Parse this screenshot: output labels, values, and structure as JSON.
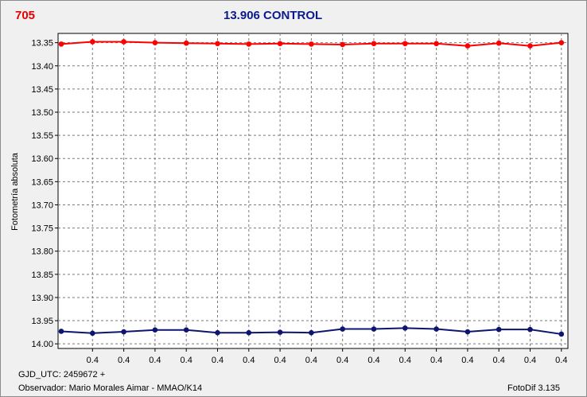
{
  "header": {
    "id_label": "705",
    "title": "13.906 CONTROL"
  },
  "footer": {
    "gjd": "GJD_UTC: 2459672 +",
    "observer": "Observador: Mario Morales Aimar - MMAO/K14",
    "software": "FotoDif 3.135"
  },
  "colors": {
    "red_series": "#ff0000",
    "blue_series": "#0d1570",
    "title": "#0a1a8c",
    "id": "#e60000"
  },
  "chart_data": {
    "type": "line",
    "title": "13.906 CONTROL",
    "ylabel": "Fotometría absoluta",
    "xlabel": "",
    "ylim": [
      14.01,
      13.33
    ],
    "y_inverted": true,
    "y_ticks": [
      13.35,
      13.4,
      13.45,
      13.5,
      13.55,
      13.6,
      13.65,
      13.7,
      13.75,
      13.8,
      13.85,
      13.9,
      13.95,
      14.0
    ],
    "x_tick_labels": [
      "0.4",
      "0.4",
      "0.4",
      "0.4",
      "0.4",
      "0.4",
      "0.4",
      "0.4",
      "0.4",
      "0.4",
      "0.4",
      "0.4",
      "0.4",
      "0.4",
      "0.4",
      "0.4",
      "0.4"
    ],
    "grid": true,
    "series": [
      {
        "color": "#ff0000",
        "values": [
          13.353,
          13.348,
          13.348,
          13.35,
          13.351,
          13.352,
          13.353,
          13.352,
          13.353,
          13.354,
          13.352,
          13.352,
          13.352,
          13.357,
          13.351,
          13.357,
          13.35
        ]
      },
      {
        "color": "#0d1570",
        "values": [
          13.973,
          13.977,
          13.974,
          13.97,
          13.97,
          13.976,
          13.976,
          13.975,
          13.976,
          13.968,
          13.968,
          13.966,
          13.968,
          13.974,
          13.969,
          13.969,
          13.979
        ]
      }
    ]
  }
}
